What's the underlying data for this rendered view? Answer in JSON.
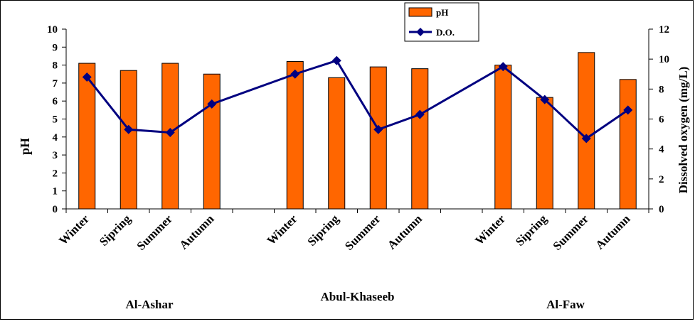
{
  "chart_data": {
    "type": "bar",
    "categories": [
      "Winter",
      "Sipring",
      "Summer",
      "Autumn",
      "Winter",
      "Sipring",
      "Summer",
      "Autumn",
      "Winter",
      "Sipring",
      "Summer",
      "Autumn"
    ],
    "groups": [
      "Al-Ashar",
      "Abul-Khaseeb",
      "Al-Faw"
    ],
    "series": [
      {
        "name": "pH",
        "type": "bar",
        "axis": "left",
        "color": "#FF6600",
        "values": [
          8.1,
          7.7,
          8.1,
          7.5,
          8.2,
          7.3,
          7.9,
          7.8,
          8.0,
          6.2,
          8.7,
          7.2
        ]
      },
      {
        "name": "D.O.",
        "type": "line",
        "axis": "right",
        "color": "#000080",
        "marker": "diamond",
        "values": [
          8.8,
          5.3,
          5.1,
          7.0,
          9.0,
          9.9,
          5.3,
          6.3,
          9.5,
          7.3,
          4.7,
          6.6
        ]
      }
    ],
    "ylabel": "pH",
    "ylim": [
      0,
      10
    ],
    "yticks": [
      "0",
      "1",
      "2",
      "3",
      "4",
      "5",
      "6",
      "7",
      "8",
      "9",
      "10"
    ],
    "y2label": "Dissolved oxygen  (mg/L)",
    "y2lim": [
      0,
      12
    ],
    "y2ticks": [
      "0",
      "2",
      "4",
      "6",
      "8",
      "10",
      "12"
    ],
    "legend_position": "top-center",
    "grid": false
  }
}
